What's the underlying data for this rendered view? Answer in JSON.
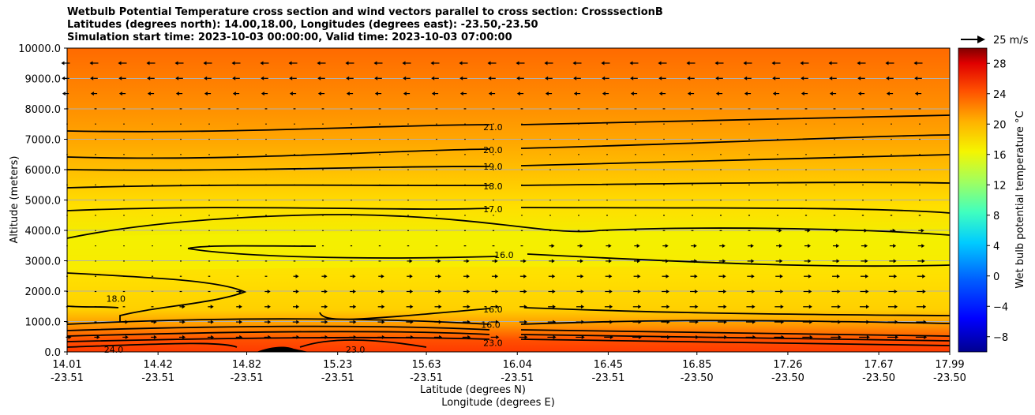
{
  "chart_data": {
    "type": "contour",
    "title_lines": [
      "Wetbulb Potential Temperature cross section and wind vectors parallel to cross section: CrosssectionB",
      "Latitudes (degrees north): 14.00,18.00, Longitudes (degrees east): -23.50,-23.50",
      "Simulation start time: 2023-10-03 00:00:00, Valid time: 2023-10-03 07:00:00"
    ],
    "ylabel": "Altitude (meters)",
    "xlabel_lat": "Latitude (degrees N)",
    "xlabel_lon": "Longitude (degrees E)",
    "ylim": [
      0,
      10000
    ],
    "yticks": [
      "0.0",
      "1000.0",
      "2000.0",
      "3000.0",
      "4000.0",
      "5000.0",
      "6000.0",
      "7000.0",
      "8000.0",
      "9000.0",
      "10000.0"
    ],
    "xticks_lat": [
      "14.01",
      "14.42",
      "14.82",
      "15.23",
      "15.63",
      "16.04",
      "16.45",
      "16.85",
      "17.26",
      "17.67",
      "17.99"
    ],
    "xticks_lon": [
      "-23.51",
      "-23.51",
      "-23.51",
      "-23.51",
      "-23.51",
      "-23.51",
      "-23.51",
      "-23.50",
      "-23.50",
      "-23.50",
      "-23.50"
    ],
    "colorbar": {
      "label": "Wet bulb potential temperature °C",
      "range": [
        -10,
        30
      ],
      "ticks": [
        "−8",
        "−4",
        "0",
        "4",
        "8",
        "12",
        "16",
        "20",
        "24",
        "28"
      ]
    },
    "wind_key_label": "25 m/s",
    "contour_labels": [
      {
        "text": "21.0",
        "lat": 15.93,
        "alt": 7400
      },
      {
        "text": "20.0",
        "lat": 15.93,
        "alt": 6650
      },
      {
        "text": "19.0",
        "lat": 15.93,
        "alt": 6100
      },
      {
        "text": "18.0",
        "lat": 15.93,
        "alt": 5450
      },
      {
        "text": "17.0",
        "lat": 15.93,
        "alt": 4700
      },
      {
        "text": "16.0",
        "lat": 15.98,
        "alt": 3200
      },
      {
        "text": "16.0",
        "lat": 15.93,
        "alt": 1400
      },
      {
        "text": "16.0",
        "lat": 15.92,
        "alt": 900
      },
      {
        "text": "18.0",
        "lat": 14.23,
        "alt": 1750
      },
      {
        "text": "23.0",
        "lat": 15.93,
        "alt": 300
      },
      {
        "text": "24.0",
        "lat": 14.22,
        "alt": 80
      },
      {
        "text": "23.0",
        "lat": 15.31,
        "alt": 80
      }
    ]
  }
}
